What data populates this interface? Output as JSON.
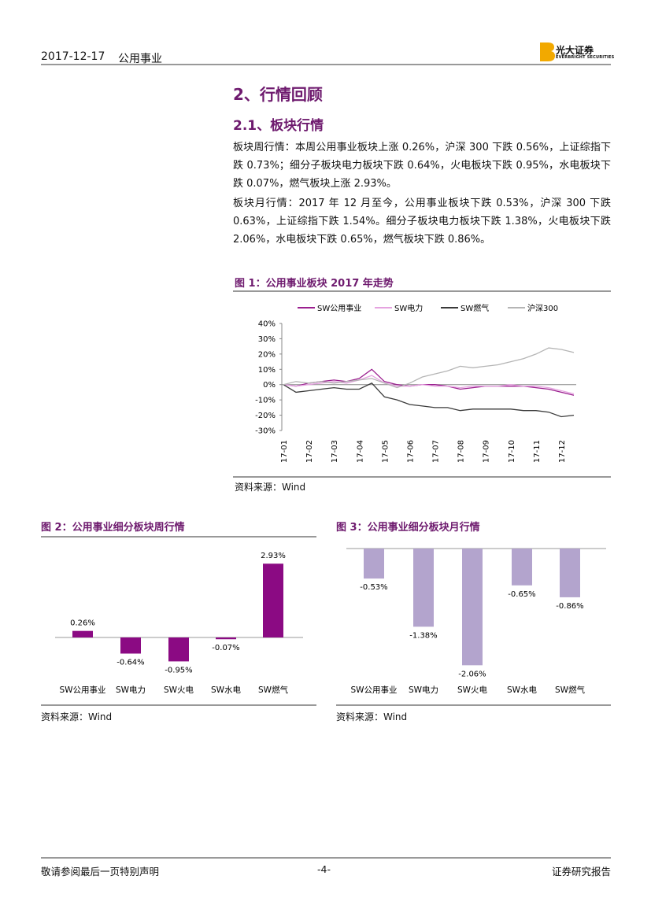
{
  "header": {
    "date": "2017-12-17",
    "section": "公用事业",
    "logo": {
      "name": "光大证券",
      "english": "EVERBRIGHT SECURITIES"
    }
  },
  "heading": "2、行情回顾",
  "subheading": "2.1、板块行情",
  "paragraphs": [
    "板块周行情：本周公用事业板块上涨 0.26%，沪深 300 下跌 0.56%，上证综指下跌 0.73%；细分子板块电力板块下跌 0.64%，火电板块下跌 0.95%，水电板块下跌 0.07%，燃气板块上涨 2.93%。",
    "板块月行情：2017 年 12 月至今，公用事业板块下跌 0.53%，沪深 300 下跌 0.63%，上证综指下跌 1.54%。细分子板块电力板块下跌 1.38%，火电板块下跌 2.06%，水电板块下跌 0.65%，燃气板块下跌 0.86%。"
  ],
  "figures": [
    {
      "title": "图 1：公用事业板块 2017 年走势",
      "source": "资料来源：Wind",
      "chart_data": {
        "type": "line",
        "categories": [
          "17-01",
          null,
          "17-02",
          null,
          "17-03",
          null,
          "17-04",
          null,
          "17-05",
          null,
          "17-06",
          null,
          "17-07",
          null,
          "17-08",
          null,
          "17-09",
          null,
          "17-10",
          null,
          "17-11",
          null,
          "17-12",
          null
        ],
        "series": [
          {
            "name": "SW公用事业",
            "color": "#9b1f8f",
            "values": [
              0,
              -1,
              1,
              2,
              3,
              2,
              4,
              10,
              2,
              0,
              -1,
              0,
              0,
              -1,
              -3,
              -2,
              -1,
              -1,
              -1,
              -1,
              -2,
              -3,
              -5,
              -7
            ]
          },
          {
            "name": "SW电力",
            "color": "#e5a3e0",
            "values": [
              0,
              -1,
              0,
              1,
              2,
              1,
              3,
              6,
              1,
              -1,
              -1,
              0,
              -1,
              -1,
              -2,
              -1,
              -1,
              -1,
              0,
              -1,
              -1,
              -2,
              -4,
              -6
            ]
          },
          {
            "name": "SW燃气",
            "color": "#3a3a3a",
            "values": [
              0,
              -5,
              -4,
              -3,
              -2,
              -3,
              -3,
              1,
              -8,
              -10,
              -13,
              -14,
              -15,
              -15,
              -17,
              -16,
              -16,
              -16,
              -16,
              -17,
              -17,
              -18,
              -21,
              -20
            ]
          },
          {
            "name": "沪深300",
            "color": "#b5b5b5",
            "values": [
              0,
              2,
              1,
              2,
              1,
              2,
              3,
              4,
              1,
              -2,
              1,
              5,
              7,
              9,
              12,
              11,
              12,
              13,
              15,
              17,
              20,
              24,
              23,
              21
            ]
          }
        ],
        "ylim": [
          -30,
          40
        ],
        "yticks": [
          {
            "value": 40,
            "label": "40%"
          },
          {
            "value": 30,
            "label": "30%"
          },
          {
            "value": 20,
            "label": "20%"
          },
          {
            "value": 10,
            "label": "10%"
          },
          {
            "value": 0,
            "label": "0%"
          },
          {
            "value": -10,
            "label": "-10%"
          },
          {
            "value": -20,
            "label": "-20%"
          },
          {
            "value": -30,
            "label": "-30%"
          }
        ],
        "legend": "top"
      }
    },
    {
      "title": "图 2：公用事业细分板块周行情",
      "source": "资料来源：Wind",
      "chart_data": {
        "type": "bar",
        "categories": [
          "SW公用事业",
          "SW电力",
          "SW火电",
          "SW水电",
          "SW燃气"
        ],
        "values": [
          0.26,
          -0.64,
          -0.95,
          -0.07,
          2.93
        ],
        "value_labels": [
          "0.26%",
          "-0.64%",
          "-0.95%",
          "-0.07%",
          "2.93%"
        ],
        "color": "#8b0a83"
      }
    },
    {
      "title": "图 3：公用事业细分板块月行情",
      "source": "资料来源：Wind",
      "chart_data": {
        "type": "bar",
        "categories": [
          "SW公用事业",
          "SW电力",
          "SW火电",
          "SW水电",
          "SW燃气"
        ],
        "values": [
          -0.53,
          -1.38,
          -2.06,
          -0.65,
          -0.86
        ],
        "value_labels": [
          "-0.53%",
          "-1.38%",
          "-2.06%",
          "-0.65%",
          "-0.86%"
        ],
        "color": "#b3a4cd"
      }
    }
  ],
  "footer": {
    "left": "敬请参阅最后一页特别声明",
    "page": "-4-",
    "right": "证券研究报告"
  }
}
